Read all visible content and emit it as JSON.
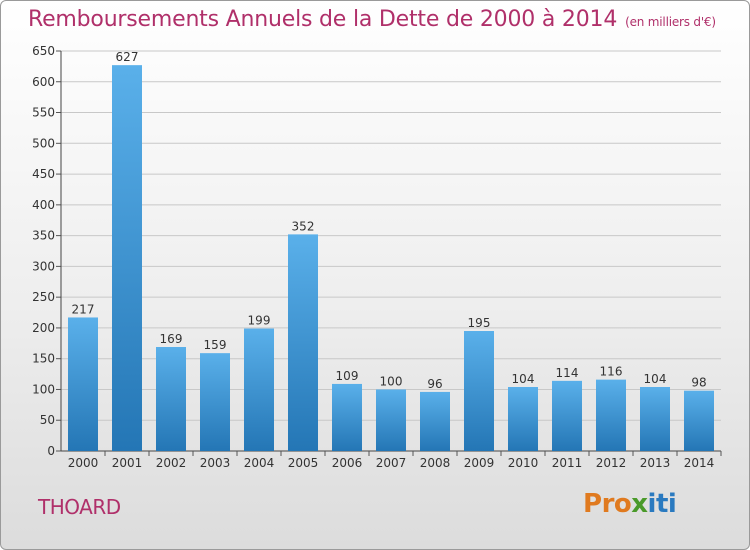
{
  "chart_data": {
    "type": "bar",
    "title": "Remboursements Annuels de la Dette de 2000 à 2014",
    "subtitle": "(en milliers d'€)",
    "categories": [
      "2000",
      "2001",
      "2002",
      "2003",
      "2004",
      "2005",
      "2006",
      "2007",
      "2008",
      "2009",
      "2010",
      "2011",
      "2012",
      "2013",
      "2014"
    ],
    "values": [
      217,
      627,
      169,
      159,
      199,
      352,
      109,
      100,
      96,
      195,
      104,
      114,
      116,
      104,
      98
    ],
    "ylim": [
      0,
      650
    ],
    "yticks": [
      0,
      50,
      100,
      150,
      200,
      250,
      300,
      350,
      400,
      450,
      500,
      550,
      600,
      650
    ],
    "grid": true,
    "colors": {
      "bar_top": "#5ab0ea",
      "bar_bottom": "#2476b5",
      "grid": "#c8c8c8",
      "text": "#333333"
    }
  },
  "footer": {
    "commune": "THOARD",
    "brand_letters": [
      "P",
      "r",
      "o",
      "x",
      "i",
      "t",
      "i"
    ],
    "brand_colors": [
      "#e07a1f",
      "#e07a1f",
      "#e07a1f",
      "#4a9a2a",
      "#2a7ac0",
      "#2a7ac0",
      "#2a7ac0"
    ]
  },
  "colors": {
    "accent": "#b0306a"
  }
}
